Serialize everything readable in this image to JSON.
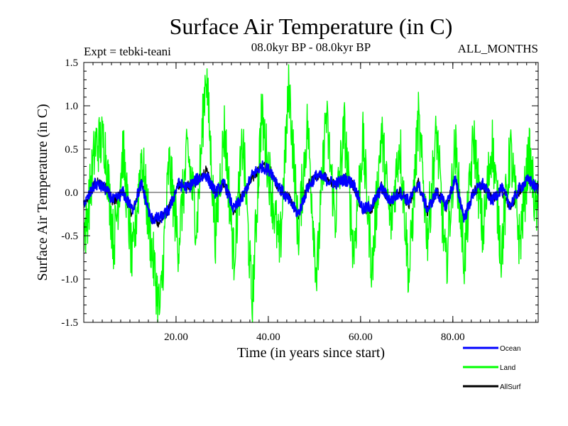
{
  "chart_data": {
    "type": "line",
    "title": "Surface Air Temperature (in C)",
    "subtitle_left": "Expt = tebki-teani",
    "subtitle_center": "08.0kyr BP - 08.0kyr BP",
    "subtitle_right": "ALL_MONTHS",
    "xlabel": "Time (in years since start)",
    "ylabel": "Surface Air Temperature (in C)",
    "xlim": [
      0,
      98.5
    ],
    "ylim": [
      -1.5,
      1.5
    ],
    "x_ticks": [
      {
        "value": 20,
        "label": "20.00"
      },
      {
        "value": 40,
        "label": "40.00"
      },
      {
        "value": 60,
        "label": "60.00"
      },
      {
        "value": 80,
        "label": "80.00"
      }
    ],
    "y_ticks": [
      {
        "value": 1.5,
        "label": "1.5"
      },
      {
        "value": 1.0,
        "label": "1.0"
      },
      {
        "value": 0.5,
        "label": "0.5"
      },
      {
        "value": 0.0,
        "label": "0.0"
      },
      {
        "value": -0.5,
        "label": "-0.5"
      },
      {
        "value": -1.0,
        "label": "-1.0"
      },
      {
        "value": -1.5,
        "label": "-1.5"
      }
    ],
    "x_minor_step": 2,
    "y_minor_step": 0.1,
    "zero_line": true,
    "legend_position": "bottom-right, below plot",
    "series": [
      {
        "name": "Land",
        "color": "#00ff00",
        "x": [
          0.5,
          2.5,
          4.5,
          6.5,
          8.5,
          10.5,
          12.5,
          14.5,
          16.5,
          18.5,
          20.5,
          22.5,
          24.5,
          26.5,
          28.5,
          30.5,
          32.5,
          34.5,
          36.5,
          38.5,
          40.5,
          42.5,
          44.5,
          46.5,
          48.5,
          50.5,
          52.5,
          54.5,
          56.5,
          58.5,
          60.5,
          62.5,
          64.5,
          66.5,
          68.5,
          70.5,
          72.5,
          74.5,
          76.5,
          78.5,
          80.5,
          82.5,
          84.5,
          86.5,
          88.5,
          90.5,
          92.5,
          94.5,
          96.5,
          98
        ],
        "values": [
          -0.4,
          0.55,
          0.6,
          -0.6,
          0.5,
          -0.85,
          0.45,
          -0.55,
          -1.4,
          0.35,
          -0.6,
          0.5,
          -0.4,
          1.45,
          -0.5,
          0.75,
          -0.75,
          0.6,
          -1.3,
          0.9,
          0.1,
          -0.7,
          1.25,
          -0.5,
          0.8,
          -1.0,
          0.9,
          -0.3,
          0.75,
          -0.7,
          0.6,
          -0.9,
          0.7,
          -0.4,
          0.6,
          -1.0,
          0.85,
          -0.5,
          0.7,
          -0.9,
          0.55,
          -0.8,
          0.65,
          -0.5,
          0.6,
          -0.7,
          0.5,
          -0.6,
          0.45,
          -0.2
        ]
      },
      {
        "name": "Ocean",
        "color": "#0000ff",
        "x": [
          0.5,
          2.5,
          4.5,
          6.5,
          8.5,
          10.5,
          12.5,
          14.5,
          16.5,
          18.5,
          20.5,
          22.5,
          24.5,
          26.5,
          28.5,
          30.5,
          32.5,
          34.5,
          36.5,
          38.5,
          40.5,
          42.5,
          44.5,
          46.5,
          48.5,
          50.5,
          52.5,
          54.5,
          56.5,
          58.5,
          60.5,
          62.5,
          64.5,
          66.5,
          68.5,
          70.5,
          72.5,
          74.5,
          76.5,
          78.5,
          80.5,
          82.5,
          84.5,
          86.5,
          88.5,
          90.5,
          92.5,
          94.5,
          96.5,
          98
        ],
        "values": [
          -0.1,
          0.1,
          0.05,
          -0.1,
          0.0,
          -0.2,
          0.1,
          -0.3,
          -0.3,
          -0.2,
          0.1,
          0.05,
          0.15,
          0.2,
          0.0,
          0.1,
          -0.2,
          -0.05,
          0.2,
          0.3,
          0.25,
          0.05,
          -0.1,
          -0.25,
          0.05,
          0.2,
          0.15,
          0.1,
          0.15,
          0.1,
          -0.2,
          -0.15,
          0.05,
          -0.1,
          0.0,
          -0.1,
          0.1,
          -0.2,
          0.0,
          -0.15,
          0.15,
          -0.3,
          0.0,
          0.1,
          -0.1,
          0.05,
          -0.15,
          0.05,
          0.15,
          0.05
        ]
      },
      {
        "name": "AllSurf",
        "color": "#000000",
        "x": [
          0.5,
          2.5,
          4.5,
          6.5,
          8.5,
          10.5,
          12.5,
          14.5,
          16.5,
          18.5,
          20.5,
          22.5,
          24.5,
          26.5,
          28.5,
          30.5,
          32.5,
          34.5,
          36.5,
          38.5,
          40.5,
          42.5,
          44.5,
          46.5,
          48.5,
          50.5,
          52.5,
          54.5,
          56.5,
          58.5,
          60.5,
          62.5,
          64.5,
          66.5,
          68.5,
          70.5,
          72.5,
          74.5,
          76.5,
          78.5,
          80.5,
          82.5,
          84.5,
          86.5,
          88.5,
          90.5,
          92.5,
          94.5,
          96.5,
          98
        ],
        "values": [
          -0.15,
          0.12,
          0.08,
          -0.12,
          0.02,
          -0.25,
          0.12,
          -0.32,
          -0.35,
          -0.18,
          0.08,
          0.08,
          0.12,
          0.25,
          -0.02,
          0.12,
          -0.22,
          -0.02,
          0.15,
          0.32,
          0.25,
          0.02,
          -0.05,
          -0.28,
          0.08,
          0.18,
          0.18,
          0.08,
          0.18,
          0.08,
          -0.22,
          -0.18,
          0.08,
          -0.12,
          0.02,
          -0.15,
          0.12,
          -0.22,
          0.02,
          -0.18,
          0.15,
          -0.32,
          0.02,
          0.08,
          -0.08,
          0.02,
          -0.18,
          0.02,
          0.15,
          0.05
        ]
      }
    ],
    "legend": [
      {
        "name": "Ocean",
        "color": "#0000ff"
      },
      {
        "name": "Land",
        "color": "#00ff00"
      },
      {
        "name": "AllSurf",
        "color": "#000000"
      }
    ]
  }
}
